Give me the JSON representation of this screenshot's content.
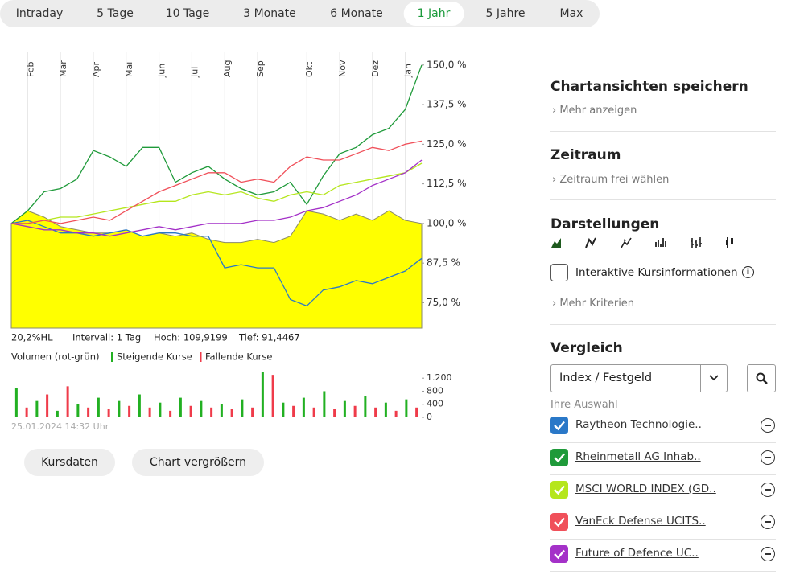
{
  "tabs": [
    "Intraday",
    "5 Tage",
    "10 Tage",
    "3 Monate",
    "6 Monate",
    "1 Jahr",
    "5 Jahre",
    "Max"
  ],
  "selected_tab": 5,
  "chart_data": [
    {
      "type": "line",
      "categories": [
        null,
        "Feb",
        null,
        "Mär",
        null,
        "Apr",
        null,
        "Mai",
        null,
        "Jun",
        null,
        "Jul",
        null,
        "Aug",
        null,
        "Sep",
        null,
        null,
        "Okt",
        null,
        "Nov",
        null,
        "Dez",
        null,
        "Jan",
        null
      ],
      "series": [
        {
          "color": "#ffff00",
          "fill": true,
          "values": [
            100,
            104,
            102,
            99,
            98,
            97,
            97,
            98,
            96,
            97,
            96,
            97,
            95,
            94,
            94,
            95,
            94,
            96,
            104,
            103,
            101,
            103,
            101,
            104,
            101,
            100
          ]
        },
        {
          "name": "Raytheon Technologie..",
          "color": "#2a78c8",
          "values": [
            100,
            101,
            99,
            97,
            97,
            96,
            97,
            98,
            96,
            97,
            97,
            96,
            96,
            86,
            87,
            86,
            86,
            76,
            74,
            79,
            80,
            82,
            81,
            83,
            85,
            89
          ]
        },
        {
          "name": "Rheinmetall AG Inhab..",
          "color": "#1f9a3a",
          "values": [
            100,
            104,
            110,
            111,
            114,
            123,
            121,
            118,
            124,
            124,
            113,
            116,
            118,
            114,
            111,
            109,
            110,
            113,
            106,
            115,
            122,
            124,
            128,
            130,
            136,
            150
          ]
        },
        {
          "name": "MSCI WORLD INDEX (GD..",
          "color": "#b5e61d",
          "values": [
            100,
            100,
            101,
            102,
            102,
            103,
            104,
            105,
            106,
            107,
            107,
            109,
            110,
            109,
            110,
            108,
            107,
            109,
            110,
            109,
            112,
            113,
            114,
            115,
            116,
            119
          ]
        },
        {
          "name": "VanEck Defense UCITS..",
          "color": "#f0505a",
          "values": [
            100,
            100,
            101,
            100,
            101,
            102,
            101,
            104,
            107,
            110,
            112,
            114,
            116,
            116,
            113,
            114,
            113,
            118,
            121,
            120,
            120,
            122,
            124,
            123,
            125,
            126
          ]
        },
        {
          "name": "Future of Defence UC..",
          "color": "#a431c8",
          "values": [
            100,
            99,
            98,
            98,
            97,
            97,
            96,
            97,
            98,
            99,
            98,
            99,
            100,
            100,
            100,
            101,
            101,
            102,
            104,
            105,
            107,
            109,
            112,
            114,
            116,
            120
          ]
        }
      ],
      "ylim": [
        67,
        154
      ],
      "yticks": [
        {
          "value": 75,
          "label": "75,0 %"
        },
        {
          "value": 87.5,
          "label": "87,5 %"
        },
        {
          "value": 100,
          "label": "100,0 %"
        },
        {
          "value": 112.5,
          "label": "112,5 %"
        },
        {
          "value": 125,
          "label": "125,0 %"
        },
        {
          "value": 137.5,
          "label": "137,5 %"
        },
        {
          "value": 150,
          "label": "150,0 %"
        }
      ],
      "grid": true,
      "info": [
        "20,2%HL",
        "Intervall: 1 Tag",
        "Hoch: 109,9199",
        "Tief: 91,4467"
      ]
    },
    {
      "type": "bar",
      "title": "Volumen (rot-grün)",
      "categories": [
        null,
        null,
        null,
        null,
        null,
        null,
        null,
        null,
        null,
        null,
        null,
        null,
        null,
        null,
        null,
        null,
        null,
        null,
        null,
        null,
        null,
        null,
        null,
        null,
        null,
        null,
        null,
        null,
        null,
        null,
        null,
        null,
        null,
        null,
        null,
        null,
        null,
        null,
        null,
        null
      ],
      "series": [
        {
          "name": "Steigende Kurse",
          "color": "#22b022",
          "values": [
            900,
            null,
            500,
            null,
            200,
            null,
            400,
            null,
            600,
            null,
            500,
            null,
            700,
            null,
            450,
            null,
            600,
            null,
            500,
            null,
            400,
            null,
            550,
            null,
            1400,
            null,
            450,
            null,
            600,
            null,
            800,
            null,
            500,
            null,
            650,
            null,
            450,
            null,
            550,
            null
          ]
        },
        {
          "name": "Fallende Kurse",
          "color": "#ef3b4a",
          "values": [
            null,
            300,
            null,
            700,
            null,
            950,
            null,
            300,
            null,
            250,
            null,
            350,
            null,
            300,
            null,
            200,
            null,
            350,
            null,
            300,
            null,
            250,
            null,
            300,
            null,
            1300,
            null,
            350,
            null,
            300,
            null,
            250,
            null,
            350,
            null,
            300,
            null,
            200,
            null,
            300
          ]
        }
      ],
      "ylim": [
        0,
        1500
      ],
      "yticks": [
        0,
        400,
        800,
        {
          "value": 1200,
          "label": "1.200"
        }
      ],
      "timestamp": "25.01.2024 14:32 Uhr"
    }
  ],
  "buttons": [
    "Kursdaten",
    "Chart vergrößern"
  ],
  "panel": {
    "save": {
      "title": "Chartansichten speichern",
      "link": "Mehr anzeigen"
    },
    "period": {
      "title": "Zeitraum",
      "link": "Zeitraum frei wählen"
    },
    "display": {
      "title": "Darstellungen",
      "checkbox": "Interaktive Kursinformationen",
      "link": "Mehr Kriterien"
    },
    "compare": {
      "title": "Vergleich",
      "select": "Index / Festgeld",
      "selection_label": "Ihre Auswahl"
    }
  }
}
